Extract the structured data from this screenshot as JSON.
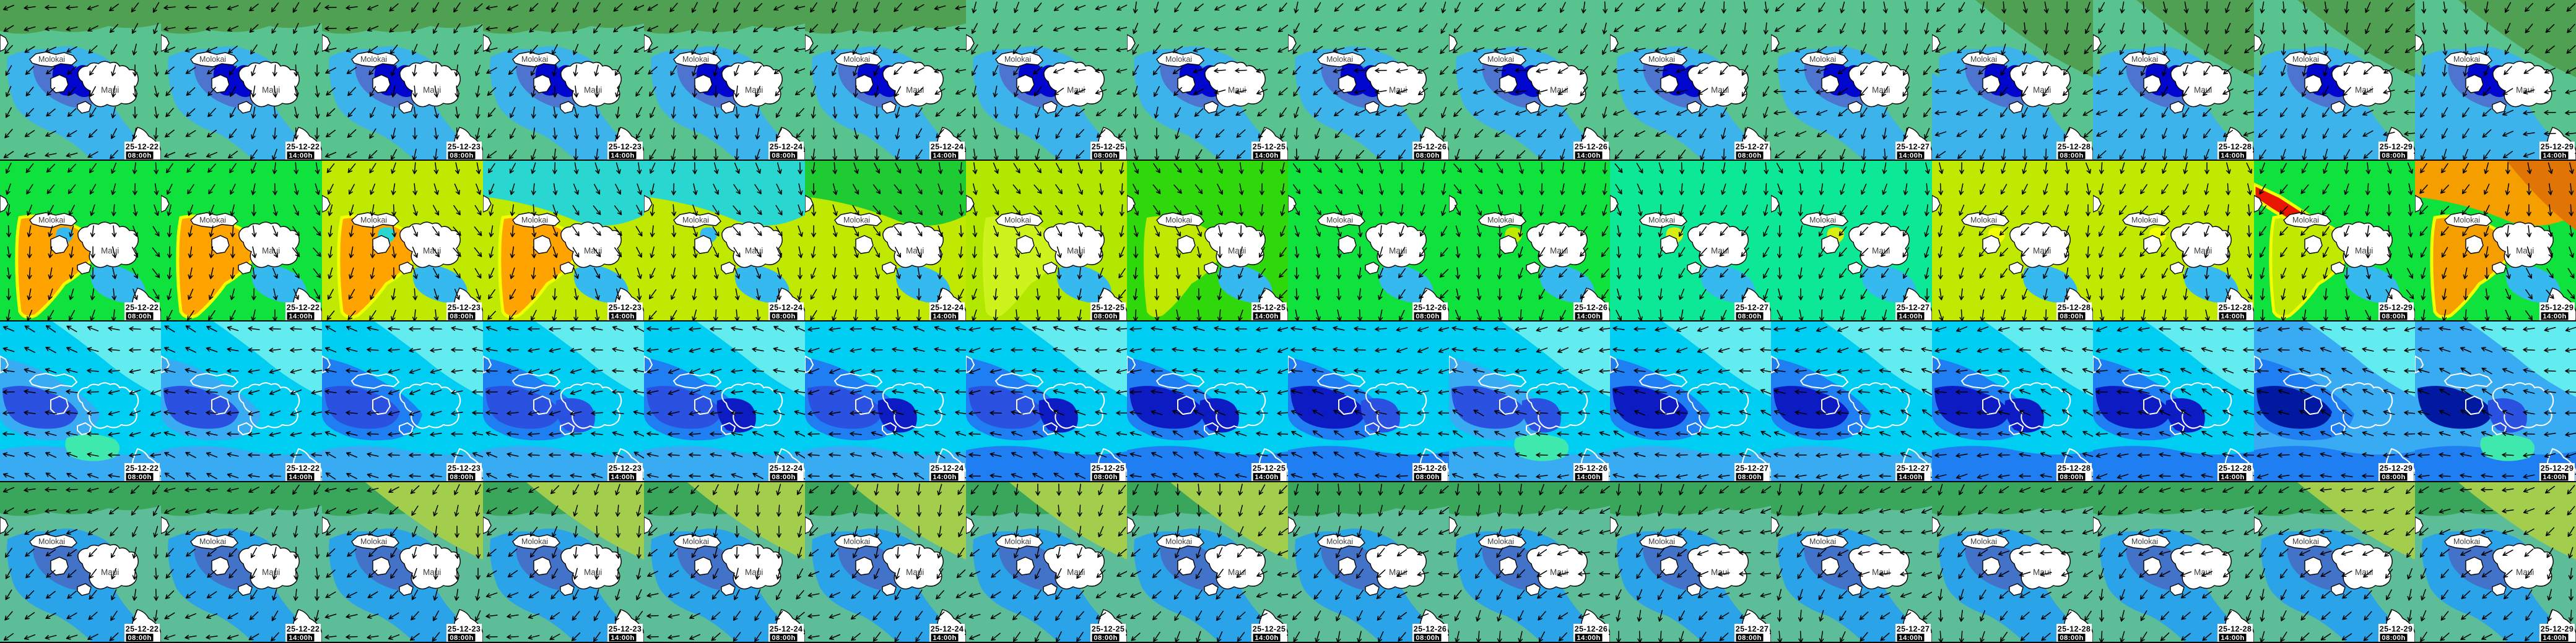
{
  "islands": {
    "molokai": "Molokai",
    "maui": "Maui"
  },
  "label_style": {
    "date_bg": "#ffffff",
    "date_color": "#000000",
    "time_bg": "#000000",
    "time_color": "#ffffff"
  },
  "arrow_color": "#000000",
  "columns": [
    {
      "date": "25-12-22",
      "time": "08:00h"
    },
    {
      "date": "25-12-22",
      "time": "14:00h"
    },
    {
      "date": "25-12-23",
      "time": "08:00h"
    },
    {
      "date": "25-12-23",
      "time": "14:00h"
    },
    {
      "date": "25-12-24",
      "time": "08:00h"
    },
    {
      "date": "25-12-24",
      "time": "14:00h"
    },
    {
      "date": "25-12-25",
      "time": "08:00h"
    },
    {
      "date": "25-12-25",
      "time": "14:00h"
    },
    {
      "date": "25-12-26",
      "time": "08:00h"
    },
    {
      "date": "25-12-26",
      "time": "14:00h"
    },
    {
      "date": "25-12-27",
      "time": "08:00h"
    },
    {
      "date": "25-12-27",
      "time": "14:00h"
    },
    {
      "date": "25-12-28",
      "time": "08:00h"
    },
    {
      "date": "25-12-28",
      "time": "14:00h"
    },
    {
      "date": "25-12-29",
      "time": "08:00h"
    },
    {
      "date": "25-12-29",
      "time": "14:00h"
    }
  ],
  "rows": [
    {
      "style": "wind",
      "islands": "filled",
      "base": "#58c38f",
      "tiles": [
        {
          "colors": {
            "band": "#4fa052",
            "lagoon": "#3cb3ea",
            "channel": "#4d74ce",
            "deep": "#0006cd"
          }
        },
        {
          "colors": {
            "band": "#4fa052",
            "lagoon": "#3cb3ea",
            "channel": "#4d74ce",
            "deep": "#0006cd"
          }
        },
        {
          "colors": {
            "band": "#4fa052",
            "lagoon": "#3cb3ea",
            "channel": "#4d74ce",
            "deep": "#0006cd"
          }
        },
        {
          "colors": {
            "band": "#4fa052",
            "lagoon": "#3cb3ea",
            "channel": "#4d74ce",
            "deep": "#0006cd"
          }
        },
        {
          "colors": {
            "band": "#4fa052",
            "lagoon": "#3cb3ea",
            "channel": "#4d74ce",
            "deep": "#0006cd"
          }
        },
        {
          "colors": {
            "band": "#4fa052",
            "lagoon": "#3cb3ea",
            "channel": "#4d74ce",
            "deep": "#0006cd"
          }
        },
        {
          "colors": {
            "lagoon": "#3cb3ea",
            "channel": "#4d74ce",
            "deep": "#0006cd"
          }
        },
        {
          "colors": {
            "lagoon": "#3cb3ea",
            "channel": "#4d74ce",
            "deep": "#0006cd"
          }
        },
        {
          "colors": {
            "lagoon": "#3cb3ea",
            "channel": "#4d74ce",
            "deep": "#0006cd"
          }
        },
        {
          "colors": {
            "lagoon": "#3cb3ea",
            "channel": "#4d74ce",
            "deep": "#0006cd"
          }
        },
        {
          "colors": {
            "lagoon": "#3cb3ea",
            "channel": "#4d74ce",
            "deep": "#0006cd"
          }
        },
        {
          "colors": {
            "lagoon": "#3cb3ea",
            "channel": "#4d74ce",
            "deep": "#0006cd"
          }
        },
        {
          "colors": {
            "band2": "#4fa052",
            "wash": "#3cb3ea",
            "lagoon": "#3cb3ea",
            "channel": "#4d74ce",
            "deep": "#0006cd"
          }
        },
        {
          "colors": {
            "band2": "#4fa052",
            "wash": "#3cb3ea",
            "lagoon": "#3cb3ea",
            "channel": "#4d74ce",
            "deep": "#0006cd"
          }
        },
        {
          "colors": {
            "band2": "#4fa052",
            "wash": "#3cb3ea",
            "lagoon": "#3cb3ea",
            "channel": "#4d74ce",
            "deep": "#0006cd"
          }
        },
        {
          "colors": {
            "band2": "#4fa052",
            "wash": "#3cb3ea",
            "lagoon": "#3cb3ea",
            "channel": "#4d74ce",
            "deep": "#0006cd"
          }
        }
      ]
    },
    {
      "style": "energy",
      "islands": "filled",
      "base": "#0fe23c",
      "tiles": [
        {
          "colors": {
            "base": "#0fe23c",
            "swath": "#ffa300",
            "fringe": "#f2ff00",
            "se": "#35b9ee",
            "spot": "#35b9ee"
          }
        },
        {
          "colors": {
            "base": "#0fe23c",
            "swath": "#ffa300",
            "fringe": "#f2ff00",
            "se": "#35b9ee"
          }
        },
        {
          "colors": {
            "base": "#bfe900",
            "swath": "#ffa300",
            "fringe": "#f2ff00",
            "se": "#35b9ee",
            "spot": "#2ad7d0"
          }
        },
        {
          "colors": {
            "base": "#bfe900",
            "top": "#2ad7d0",
            "swath": "#ffa300",
            "fringe": "#f2ff00",
            "se": "#35b9ee"
          }
        },
        {
          "colors": {
            "base": "#bfe900",
            "top": "#2ad7d0",
            "se": "#35b9ee",
            "spot": "#35b9ee"
          }
        },
        {
          "colors": {
            "base": "#bfe900",
            "top": "#1ecb32",
            "se": "#35b9ee"
          }
        },
        {
          "colors": {
            "base": "#b2e800",
            "swath": "#ccf31c",
            "se": "#35b9ee"
          }
        },
        {
          "colors": {
            "base": "#2fd80a",
            "swath": "#bfe900",
            "se": "#35b9ee"
          }
        },
        {
          "colors": {
            "base": "#0fe23c",
            "se": "#35b9ee"
          }
        },
        {
          "colors": {
            "base": "#0fe23c",
            "se": "#35b9ee",
            "spot": "#bfe900"
          }
        },
        {
          "colors": {
            "base": "#0ce896",
            "se": "#35b9ee",
            "spot": "#d6ee12"
          }
        },
        {
          "colors": {
            "base": "#0ce896",
            "se": "#35b9ee",
            "spot": "#d6ee12"
          }
        },
        {
          "colors": {
            "base": "#bfe900",
            "se": "#35b9ee",
            "spot": "#f2ff00"
          }
        },
        {
          "colors": {
            "base": "#bfe900",
            "se": "#35b9ee",
            "spot": "#f2ff00"
          }
        },
        {
          "colors": {
            "base": "#0fe23c",
            "streak": "#e81500",
            "fringe": "#f2ff00",
            "swath": "#bfe900",
            "se": "#35b9ee"
          }
        },
        {
          "colors": {
            "base": "#0fe23c",
            "top": "#f59e00",
            "top2": "#e07404",
            "swath": "#f59e00",
            "fringe": "#f2ff00",
            "se": "#35b9ee"
          }
        }
      ]
    },
    {
      "style": "swell",
      "islands": "outline",
      "base": "#00cdf2",
      "tiles": [
        {
          "colors": {
            "pale": "#63ecef",
            "west": "#38abf2",
            "deepA": "#2b51e0",
            "mint": "#3fe9ae",
            "south": "#38abf2"
          }
        },
        {
          "colors": {
            "pale": "#63ecef",
            "west": "#38abf2",
            "deepA": "#2b51e0",
            "south": "#38abf2"
          }
        },
        {
          "colors": {
            "pale": "#63ecef",
            "west": "#1e7ef2",
            "deepA": "#2b51e0",
            "south": "#38abf2"
          }
        },
        {
          "colors": {
            "pale": "#63ecef",
            "west": "#1e7ef2",
            "deepA": "#2b51e0",
            "deepB": "#2b51e0",
            "south": "#38abf2"
          }
        },
        {
          "colors": {
            "pale": "#63ecef",
            "west": "#1e7ef2",
            "deepA": "#2b51e0",
            "deepB": "#0d1cc2",
            "south": "#38abf2"
          }
        },
        {
          "colors": {
            "west": "#1e7ef2",
            "deepA": "#2b51e0",
            "deepB": "#0d1cc2",
            "south": "#38abf2"
          }
        },
        {
          "colors": {
            "pale": "#63ecef",
            "west": "#1e7ef2",
            "deepA": "#2b51e0",
            "deepB": "#0d1cc2",
            "south": "#1e7ef2"
          }
        },
        {
          "colors": {
            "west": "#1e7ef2",
            "deepA": "#0d1cc2",
            "deepB": "#0d1cc2",
            "south": "#1e7ef2"
          }
        },
        {
          "colors": {
            "west": "#1e7ef2",
            "deepA": "#0d1cc2",
            "deepB": "#2b51e0",
            "south": "#1e7ef2"
          }
        },
        {
          "colors": {
            "pale": "#63ecef",
            "west": "#38abf2",
            "deepA": "#2b51e0",
            "deepB": "#2b51e0",
            "mint": "#3fe9ae",
            "south": "#38abf2"
          }
        },
        {
          "colors": {
            "pale": "#63ecef",
            "west": "#1e7ef2",
            "deepA": "#0d1cc2",
            "south": "#38abf2"
          }
        },
        {
          "colors": {
            "pale": "#63ecef",
            "west": "#1e7ef2",
            "deepA": "#0d1cc2",
            "south": "#38abf2"
          }
        },
        {
          "colors": {
            "pale": "#63ecef",
            "west": "#1e7ef2",
            "deepA": "#0d1cc2",
            "deepB": "#0d1cc2",
            "south": "#1e7ef2"
          }
        },
        {
          "colors": {
            "pale": "#63ecef",
            "west": "#1e7ef2",
            "deepA": "#0d1cc2",
            "deepB": "#0d1cc2",
            "south": "#1e7ef2"
          }
        },
        {
          "colors": {
            "base": "#38abf2",
            "pale": "#63ecef",
            "west": "#1e7ef2",
            "deepA": "#0019a0",
            "south": "#1e7ef2"
          }
        },
        {
          "colors": {
            "base": "#38abf2",
            "pale": "#63ecef",
            "deepA": "#0019a0",
            "deepB": "#2b51e0",
            "south": "#1e7ef2",
            "mint": "#3fe9ae"
          }
        }
      ]
    },
    {
      "style": "wind",
      "islands": "filled",
      "base": "#5dbd98",
      "tiles": [
        {
          "colors": {
            "band": "#3aa65c",
            "lagoon": "#2aa3e8",
            "channel": "#4273c8"
          }
        },
        {
          "colors": {
            "band": "#3aa65c",
            "lagoon": "#2aa3e8",
            "channel": "#4273c8"
          }
        },
        {
          "colors": {
            "band": "#3aa65c",
            "band2": "#a3ce4d",
            "lagoon": "#2aa3e8",
            "channel": "#4273c8"
          }
        },
        {
          "colors": {
            "band": "#3aa65c",
            "band2": "#a3ce4d",
            "lagoon": "#2aa3e8",
            "channel": "#4273c8"
          }
        },
        {
          "colors": {
            "band": "#3aa65c",
            "band2": "#a3ce4d",
            "lagoon": "#2aa3e8",
            "channel": "#4273c8"
          }
        },
        {
          "colors": {
            "band": "#3aa65c",
            "band2": "#a3ce4d",
            "lagoon": "#2aa3e8",
            "channel": "#4273c8"
          }
        },
        {
          "colors": {
            "band": "#3aa65c",
            "band2": "#a3ce4d",
            "lagoon": "#2aa3e8",
            "channel": "#4273c8"
          }
        },
        {
          "colors": {
            "band": "#3aa65c",
            "band2": "#a3ce4d",
            "lagoon": "#2aa3e8",
            "channel": "#4273c8"
          }
        },
        {
          "colors": {
            "band": "#3aa65c",
            "lagoon": "#2aa3e8",
            "channel": "#4273c8"
          }
        },
        {
          "colors": {
            "band": "#3aa65c",
            "lagoon": "#2aa3e8",
            "channel": "#4273c8"
          }
        },
        {
          "colors": {
            "band": "#3aa65c",
            "lagoon": "#2aa3e8",
            "channel": "#4273c8"
          }
        },
        {
          "colors": {
            "band": "#3aa65c",
            "lagoon": "#2aa3e8",
            "channel": "#4273c8"
          }
        },
        {
          "colors": {
            "band": "#3aa65c",
            "lagoon": "#2aa3e8",
            "channel": "#4273c8"
          }
        },
        {
          "colors": {
            "band": "#3aa65c",
            "lagoon": "#2aa3e8",
            "channel": "#4273c8"
          }
        },
        {
          "colors": {
            "band": "#3aa65c",
            "band2": "#a3ce4d",
            "lagoon": "#2aa3e8",
            "channel": "#4273c8"
          }
        },
        {
          "colors": {
            "band": "#3aa65c",
            "band2": "#a3ce4d",
            "lagoon": "#2aa3e8",
            "channel": "#4273c8"
          }
        }
      ]
    }
  ]
}
